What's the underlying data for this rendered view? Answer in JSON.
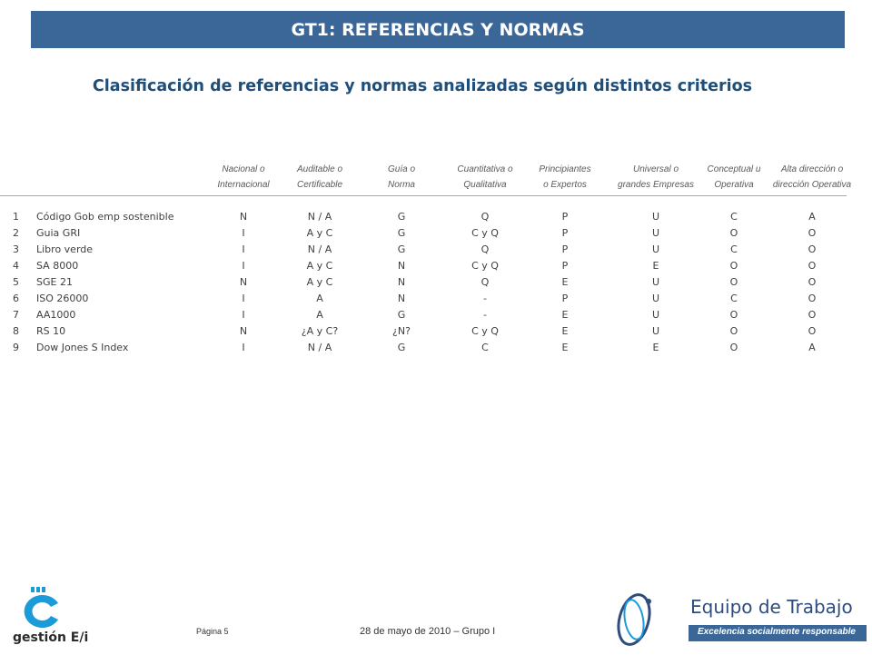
{
  "title": "GT1: REFERENCIAS Y NORMAS",
  "subtitle": "Clasificación de referencias y normas analizadas según distintos criterios",
  "headers": [
    [
      "Nacional o",
      "Internacional"
    ],
    [
      "Auditable o",
      "Certificable"
    ],
    [
      "Guía o",
      "Norma"
    ],
    [
      "Cuantitativa o",
      "Qualitativa"
    ],
    [
      "Principiantes",
      "o Expertos"
    ],
    [
      "Universal o",
      "grandes Empresas"
    ],
    [
      "Conceptual u",
      "Operativa"
    ],
    [
      "Alta dirección o",
      "dirección Operativa"
    ]
  ],
  "rows": [
    {
      "num": "1",
      "name": "Código Gob emp sostenible",
      "vals": [
        "N",
        "N / A",
        "G",
        "Q",
        "P",
        "U",
        "C",
        "A"
      ]
    },
    {
      "num": "2",
      "name": "Guia GRI",
      "vals": [
        "I",
        "A y C",
        "G",
        "C y Q",
        "P",
        "U",
        "O",
        "O"
      ]
    },
    {
      "num": "3",
      "name": "Libro verde",
      "vals": [
        "I",
        "N / A",
        "G",
        "Q",
        "P",
        "U",
        "C",
        "O"
      ]
    },
    {
      "num": "4",
      "name": "SA 8000",
      "vals": [
        "I",
        "A y C",
        "N",
        "C y Q",
        "P",
        "E",
        "O",
        "O"
      ]
    },
    {
      "num": "5",
      "name": "SGE 21",
      "vals": [
        "N",
        "A y C",
        "N",
        "Q",
        "E",
        "U",
        "O",
        "O"
      ]
    },
    {
      "num": "6",
      "name": "ISO 26000",
      "vals": [
        "I",
        "A",
        "N",
        "-",
        "P",
        "U",
        "C",
        "O"
      ]
    },
    {
      "num": "7",
      "name": "AA1000",
      "vals": [
        "I",
        "A",
        "G",
        "-",
        "E",
        "U",
        "O",
        "O"
      ]
    },
    {
      "num": "8",
      "name": "RS 10",
      "vals": [
        "N",
        "¿A y C?",
        "¿N?",
        "C y Q",
        "E",
        "U",
        "O",
        "O"
      ]
    },
    {
      "num": "9",
      "name": "Dow Jones S Index",
      "vals": [
        "I",
        "N / A",
        "G",
        "C",
        "E",
        "E",
        "O",
        "A"
      ]
    }
  ],
  "footer": {
    "page": "Página 5",
    "date": "28 de mayo de 2010 – Grupo I"
  },
  "logo_left": {
    "text": "gestión E/i"
  },
  "logo_right": {
    "title": "Equipo de Trabajo",
    "tagline": "Excelencia socialmente responsable"
  },
  "colors": {
    "title_bar": "#3a6798",
    "subtitle": "#1f4e79",
    "rule": "#8eaadb"
  }
}
